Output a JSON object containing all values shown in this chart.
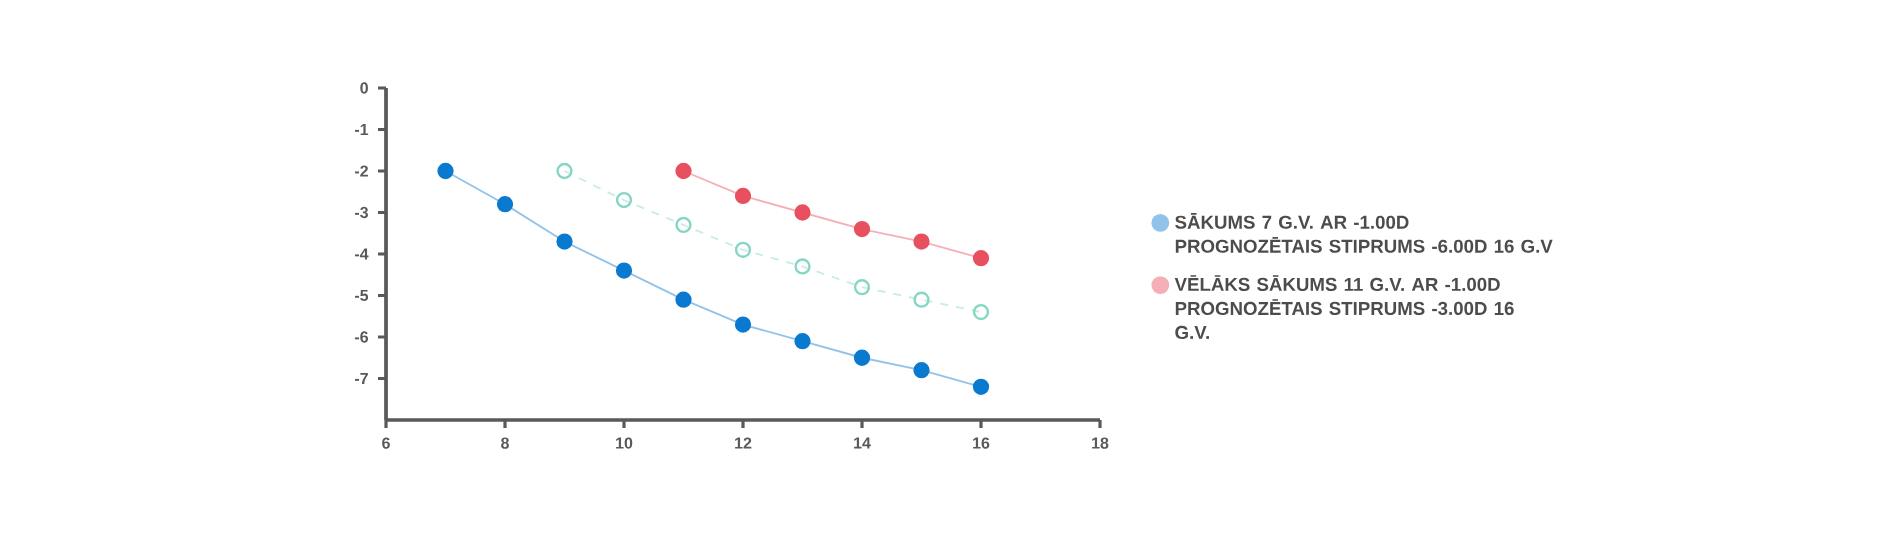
{
  "chart_data": {
    "type": "line",
    "x": [
      7,
      8,
      9,
      10,
      11,
      12,
      13,
      14,
      15,
      16
    ],
    "series": [
      {
        "name": "SĀKUMS 7 G.V. AR -1.00D PROGNOZĒTAIS STIPRUMS -6.00D 16 G.V",
        "color": "#0a7ad0",
        "marker": "circle",
        "line_style": "solid",
        "values": [
          -2.0,
          -2.8,
          -3.7,
          -4.4,
          -5.1,
          -5.7,
          -6.1,
          -6.5,
          -6.8,
          -7.2
        ]
      },
      {
        "color": "#86d6c6",
        "marker": "circle-open",
        "line_style": "dashed",
        "x": [
          9,
          10,
          11,
          12,
          13,
          14,
          15,
          16
        ],
        "values": [
          -2.0,
          -2.7,
          -3.3,
          -3.9,
          -4.3,
          -4.8,
          -5.1,
          -5.4
        ]
      },
      {
        "name": "VĒLĀKS SĀKUMS 11 G.V. AR -1.00D PROGNOZĒTAIS STIPRUMS -3.00D 16 G.V.",
        "color": "#e8505f",
        "marker": "circle",
        "line_style": "solid",
        "x": [
          11,
          12,
          13,
          14,
          15,
          16
        ],
        "values": [
          -2.0,
          -2.6,
          -3.0,
          -3.4,
          -3.7,
          -4.1
        ]
      }
    ],
    "xlim": [
      6,
      18
    ],
    "xticks": [
      6,
      8,
      10,
      12,
      14,
      16,
      18
    ],
    "ylim": [
      -8,
      0
    ],
    "yticks": [
      0,
      -1,
      -2,
      -3,
      -4,
      -5,
      -6,
      -7
    ],
    "grid": false,
    "legend": "right"
  }
}
